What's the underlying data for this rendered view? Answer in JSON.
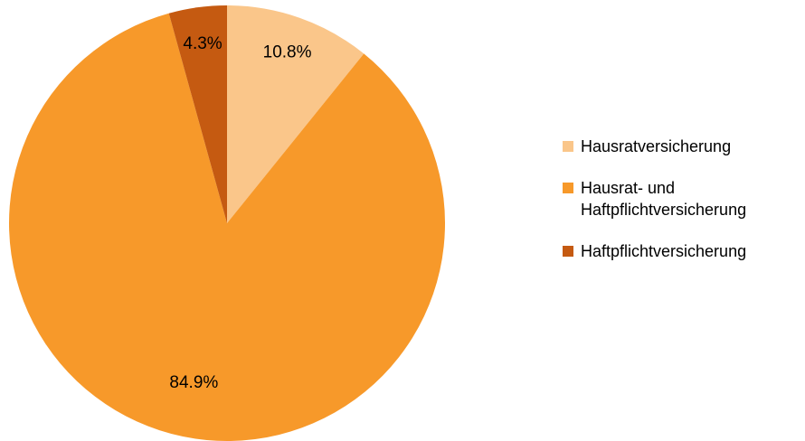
{
  "chart_data": {
    "type": "pie",
    "categories": [
      "Hausratversicherung",
      "Hausrat- und Haftpflichtversicherung",
      "Haftpflichtversicherung"
    ],
    "values": [
      10.8,
      84.9,
      4.3
    ],
    "value_labels": [
      "10.8%",
      "84.9%",
      "4.3%"
    ],
    "colors": [
      "#fac68a",
      "#f7992a",
      "#c55a11"
    ],
    "legend": "right"
  }
}
